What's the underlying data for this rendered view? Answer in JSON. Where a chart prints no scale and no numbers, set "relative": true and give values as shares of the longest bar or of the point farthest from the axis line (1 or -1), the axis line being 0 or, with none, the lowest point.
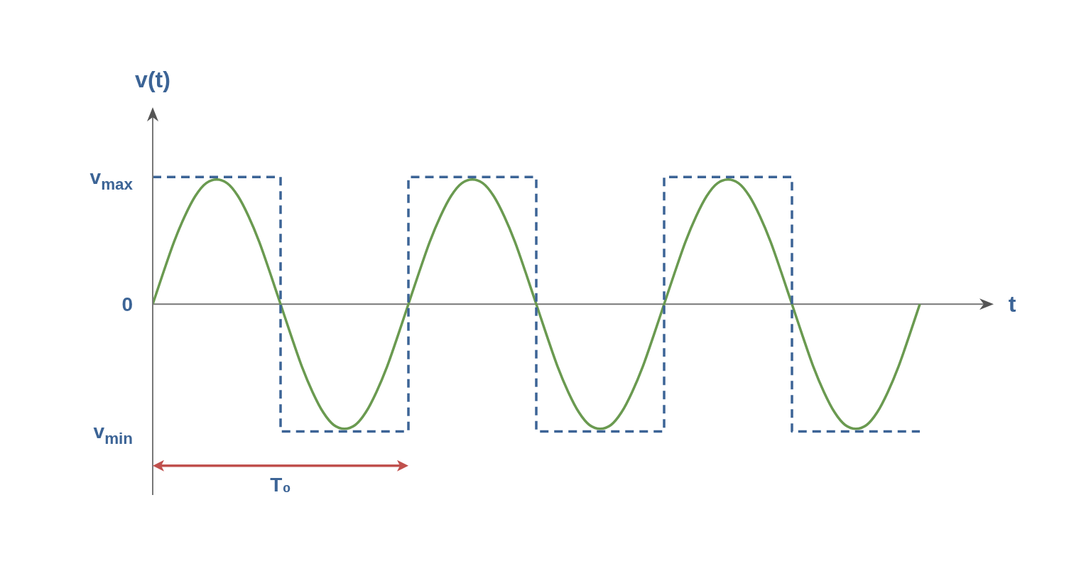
{
  "chart_data": {
    "type": "line",
    "xlabel": "t",
    "ylabel": "v(t)",
    "relative": true,
    "marker": "none",
    "categories": [
      null,
      null,
      null,
      null,
      null,
      null,
      null,
      null,
      null,
      null,
      null,
      null,
      null,
      null,
      null,
      null,
      null,
      null,
      null,
      null,
      null,
      null,
      null,
      null,
      null,
      null,
      null,
      null,
      null,
      null,
      null,
      null,
      null,
      null,
      null,
      null,
      null,
      null,
      null,
      null,
      null,
      null,
      null,
      null,
      null,
      null,
      null,
      null,
      null,
      null,
      null,
      null,
      null,
      null,
      null,
      null,
      null,
      null,
      null,
      null,
      null,
      null,
      null,
      null,
      null,
      null,
      null,
      null,
      null,
      null,
      null,
      null,
      null,
      null,
      null,
      null,
      null,
      null,
      null
    ],
    "series": [
      {
        "type": "line",
        "color": "#6a9a50",
        "line_style": "solid",
        "values": [
          0,
          0.25,
          0.49,
          0.69,
          0.85,
          0.95,
          0.98,
          0.95,
          0.85,
          0.69,
          0.49,
          0.25,
          0,
          -0.25,
          -0.49,
          -0.69,
          -0.85,
          -0.95,
          -0.98,
          -0.95,
          -0.85,
          -0.69,
          -0.49,
          -0.25,
          0,
          0.25,
          0.49,
          0.69,
          0.85,
          0.95,
          0.98,
          0.95,
          0.85,
          0.69,
          0.49,
          0.25,
          0,
          -0.25,
          -0.49,
          -0.69,
          -0.85,
          -0.95,
          -0.98,
          -0.95,
          -0.85,
          -0.69,
          -0.49,
          -0.25,
          0,
          0.25,
          0.49,
          0.69,
          0.85,
          0.95,
          0.98,
          0.95,
          0.85,
          0.69,
          0.49,
          0.25,
          0,
          -0.25,
          -0.49,
          -0.69,
          -0.85,
          -0.95,
          -0.98,
          -0.95,
          -0.85,
          -0.69,
          -0.49,
          -0.25,
          0,
          null,
          null,
          null,
          null,
          null,
          null
        ]
      },
      {
        "type": "step",
        "color": "#3c6496",
        "line_style": "dashed",
        "values": [
          1,
          1,
          1,
          1,
          1,
          1,
          1,
          1,
          1,
          1,
          1,
          1,
          -1,
          -1,
          -1,
          -1,
          -1,
          -1,
          -1,
          -1,
          -1,
          -1,
          -1,
          -1,
          1,
          1,
          1,
          1,
          1,
          1,
          1,
          1,
          1,
          1,
          1,
          1,
          -1,
          -1,
          -1,
          -1,
          -1,
          -1,
          -1,
          -1,
          -1,
          -1,
          -1,
          -1,
          1,
          1,
          1,
          1,
          1,
          1,
          1,
          1,
          1,
          1,
          1,
          1,
          -1,
          -1,
          -1,
          -1,
          -1,
          -1,
          -1,
          -1,
          -1,
          -1,
          -1,
          -1,
          -1,
          null,
          null,
          null,
          null,
          null,
          null
        ]
      }
    ],
    "annotations": [
      "v$_{max}$",
      "0",
      "v$_{min}$",
      "T₀"
    ]
  }
}
